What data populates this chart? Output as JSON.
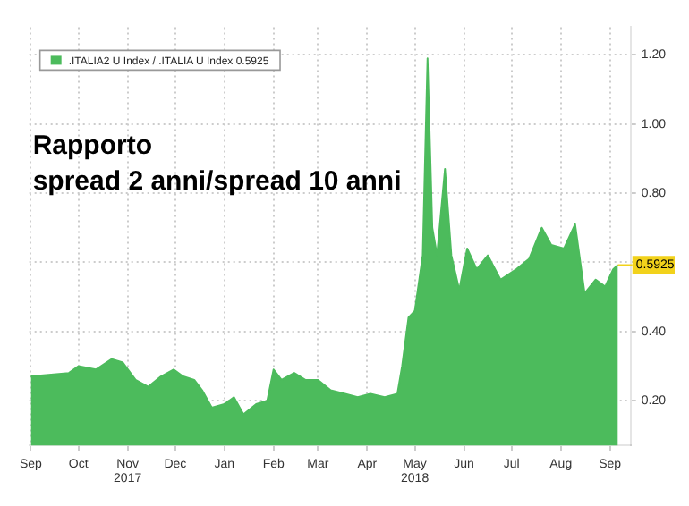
{
  "chart_data": {
    "type": "area",
    "title": "Rapporto",
    "subtitle": "spread 2 anni/spread 10 anni",
    "legend": "top left",
    "series": [
      {
        "name": ".ITALIA2 U Index / .ITALIA U Index 0.5925",
        "color": "#4cbb5c",
        "x": [
          "2017-09-01",
          "2017-09-25",
          "2017-10-01",
          "2017-10-12",
          "2017-10-22",
          "2017-10-29",
          "2017-11-06",
          "2017-11-14",
          "2017-11-22",
          "2017-11-30",
          "2017-12-06",
          "2017-12-13",
          "2017-12-18",
          "2017-12-24",
          "2018-01-01",
          "2018-01-07",
          "2018-01-13",
          "2018-01-21",
          "2018-01-28",
          "2018-02-01",
          "2018-02-06",
          "2018-02-14",
          "2018-02-21",
          "2018-03-01",
          "2018-03-09",
          "2018-03-18",
          "2018-03-26",
          "2018-04-03",
          "2018-04-12",
          "2018-04-20",
          "2018-04-23",
          "2018-04-27",
          "2018-05-01",
          "2018-05-06",
          "2018-05-09",
          "2018-05-12",
          "2018-05-15",
          "2018-05-20",
          "2018-05-24",
          "2018-05-29",
          "2018-06-03",
          "2018-06-09",
          "2018-06-16",
          "2018-06-24",
          "2018-07-04",
          "2018-07-12",
          "2018-07-20",
          "2018-07-26",
          "2018-08-03",
          "2018-08-10",
          "2018-08-16",
          "2018-08-23",
          "2018-08-29",
          "2018-09-03",
          "2018-09-06"
        ],
        "values": [
          0.27,
          0.28,
          0.3,
          0.29,
          0.32,
          0.31,
          0.26,
          0.24,
          0.27,
          0.29,
          0.27,
          0.26,
          0.23,
          0.18,
          0.19,
          0.21,
          0.16,
          0.19,
          0.2,
          0.29,
          0.26,
          0.28,
          0.26,
          0.26,
          0.23,
          0.22,
          0.21,
          0.22,
          0.21,
          0.22,
          0.3,
          0.44,
          0.46,
          0.62,
          1.19,
          0.7,
          0.62,
          0.87,
          0.62,
          0.52,
          0.64,
          0.58,
          0.62,
          0.55,
          0.58,
          0.61,
          0.7,
          0.65,
          0.64,
          0.71,
          0.51,
          0.55,
          0.53,
          0.58,
          0.5925
        ]
      }
    ],
    "xlim": [
      "2017-08-31",
      "2018-09-14"
    ],
    "xticks": [
      {
        "value": "2017-09-01",
        "label": "Sep"
      },
      {
        "value": "2017-10-01",
        "label": "Oct"
      },
      {
        "value": "2017-11-01",
        "label": "Nov\n2017"
      },
      {
        "value": "2017-12-01",
        "label": "Dec"
      },
      {
        "value": "2018-01-01",
        "label": "Jan"
      },
      {
        "value": "2018-02-01",
        "label": "Feb"
      },
      {
        "value": "2018-03-01",
        "label": "Mar"
      },
      {
        "value": "2018-04-01",
        "label": "Apr"
      },
      {
        "value": "2018-05-01",
        "label": "May\n2018"
      },
      {
        "value": "2018-06-01",
        "label": "Jun"
      },
      {
        "value": "2018-07-01",
        "label": "Jul"
      },
      {
        "value": "2018-08-01",
        "label": "Aug"
      },
      {
        "value": "2018-09-01",
        "label": "Sep"
      }
    ],
    "ylim": [
      0.07,
      1.28
    ],
    "yticks": [
      {
        "value": 0.2,
        "label": "0.20"
      },
      {
        "value": 0.4,
        "label": "0.40"
      },
      {
        "value": 0.6,
        "label": null
      },
      {
        "value": 0.8,
        "label": "0.80"
      },
      {
        "value": 1.0,
        "label": "1.00"
      },
      {
        "value": 1.2,
        "label": "1.20"
      }
    ],
    "grid": true,
    "annotations": [
      {
        "text": "0.5925",
        "x": "2018-09-06",
        "y": 0.5925
      }
    ]
  }
}
